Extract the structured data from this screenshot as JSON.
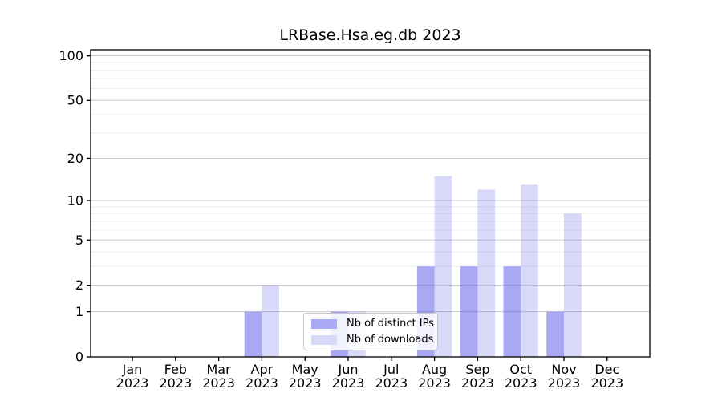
{
  "figure": {
    "title": "LRBase.Hsa.eg.db 2023"
  },
  "chart_data": {
    "type": "bar",
    "title": "LRBase.Hsa.eg.db 2023",
    "categories": [
      "Jan 2023",
      "Feb 2023",
      "Mar 2023",
      "Apr 2023",
      "May 2023",
      "Jun 2023",
      "Jul 2023",
      "Aug 2023",
      "Sep 2023",
      "Oct 2023",
      "Nov 2023",
      "Dec 2023"
    ],
    "x_tick_months": [
      "Jan",
      "Feb",
      "Mar",
      "Apr",
      "May",
      "Jun",
      "Jul",
      "Aug",
      "Sep",
      "Oct",
      "Nov",
      "Dec"
    ],
    "x_tick_year": "2023",
    "series": [
      {
        "name": "Nb of distinct IPs",
        "swatch_color": "#a8a8f4",
        "fill_rgba": "rgba(81,81,233,0.5)",
        "values": [
          0,
          0,
          0,
          1,
          0,
          1,
          0,
          3,
          3,
          3,
          1,
          0
        ]
      },
      {
        "name": "Nb of downloads",
        "swatch_color": "#d8d8f8",
        "fill_rgba": "rgba(99,99,227,0.25)",
        "values": [
          0,
          0,
          0,
          2,
          0,
          1,
          0,
          15,
          12,
          13,
          8,
          0
        ]
      }
    ],
    "y_axis": {
      "scale": "log1p",
      "tick_labels": [
        "0",
        "1",
        "2",
        "5",
        "10",
        "20",
        "50",
        "100"
      ],
      "tick_values": [
        0,
        1,
        2,
        5,
        10,
        20,
        50,
        100
      ],
      "range_max": 110
    },
    "gridlines": {
      "major_values": [
        1,
        2,
        5,
        10,
        20,
        50,
        100
      ],
      "minor_values": [
        3,
        4,
        6,
        7,
        8,
        9,
        30,
        40,
        60,
        70,
        80,
        90
      ],
      "major_color": "#c9c9c9",
      "minor_color": "#ededed"
    },
    "legend": {
      "position": "lower center"
    },
    "axis_color": "#000000",
    "xlabel": "",
    "ylabel": ""
  }
}
